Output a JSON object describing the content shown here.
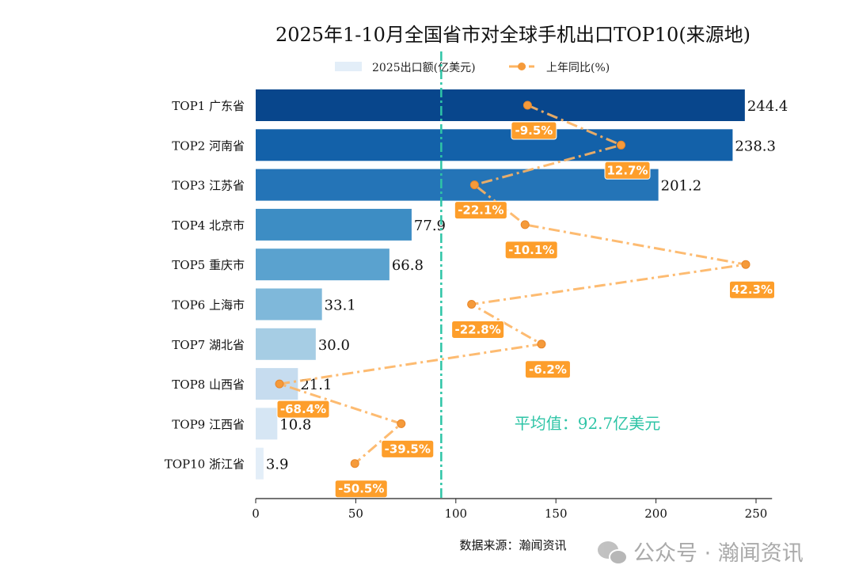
{
  "chart_data": {
    "type": "bar",
    "orientation": "horizontal",
    "title": "2025年1-10月全国省市对全球手机出口TOP10(来源地)",
    "categories": [
      "TOP1 广东省",
      "TOP2 河南省",
      "TOP3 江苏省",
      "TOP4 北京市",
      "TOP5 重庆市",
      "TOP6 上海市",
      "TOP7 湖北省",
      "TOP8 山西省",
      "TOP9 江西省",
      "TOP10 浙江省"
    ],
    "series": [
      {
        "name": "2025出口额(亿美元)",
        "type": "bar",
        "values": [
          244.4,
          238.3,
          201.2,
          77.9,
          66.8,
          33.1,
          30.0,
          21.1,
          10.8,
          3.9
        ],
        "value_labels": [
          "244.4",
          "238.3",
          "201.2",
          "77.9",
          "66.8",
          "33.1",
          "30.0",
          "21.1",
          "10.8",
          "3.9"
        ]
      },
      {
        "name": "上年同比(%)",
        "type": "line",
        "values": [
          -9.5,
          12.7,
          -22.1,
          -10.1,
          42.3,
          -22.8,
          -6.2,
          -68.4,
          -39.5,
          -50.5
        ],
        "value_labels": [
          "-9.5%",
          "12.7%",
          "-22.1%",
          "-10.1%",
          "42.3%",
          "-22.8%",
          "-6.2%",
          "-68.4%",
          "-39.5%",
          "-50.5%"
        ]
      }
    ],
    "bar_colors": [
      "#08468c",
      "#1361a9",
      "#2474b7",
      "#3d8dc4",
      "#5aa2cf",
      "#7fb8da",
      "#a6cde4",
      "#c6dcef",
      "#d6e6f4",
      "#e3eef8"
    ],
    "line_color": "#fdb462",
    "label_box_color": "#fd9e2b",
    "xlim": [
      0,
      258
    ],
    "xticks": [
      0,
      50,
      100,
      150,
      200,
      250
    ],
    "average": {
      "value": 92.7,
      "label": "平均值：92.7亿美元",
      "color": "#2ec4a6"
    },
    "legend_placement": "top",
    "grid": false,
    "source": "数据来源：瀚闻资讯"
  },
  "watermark": "公众号 · 瀚闻资讯"
}
